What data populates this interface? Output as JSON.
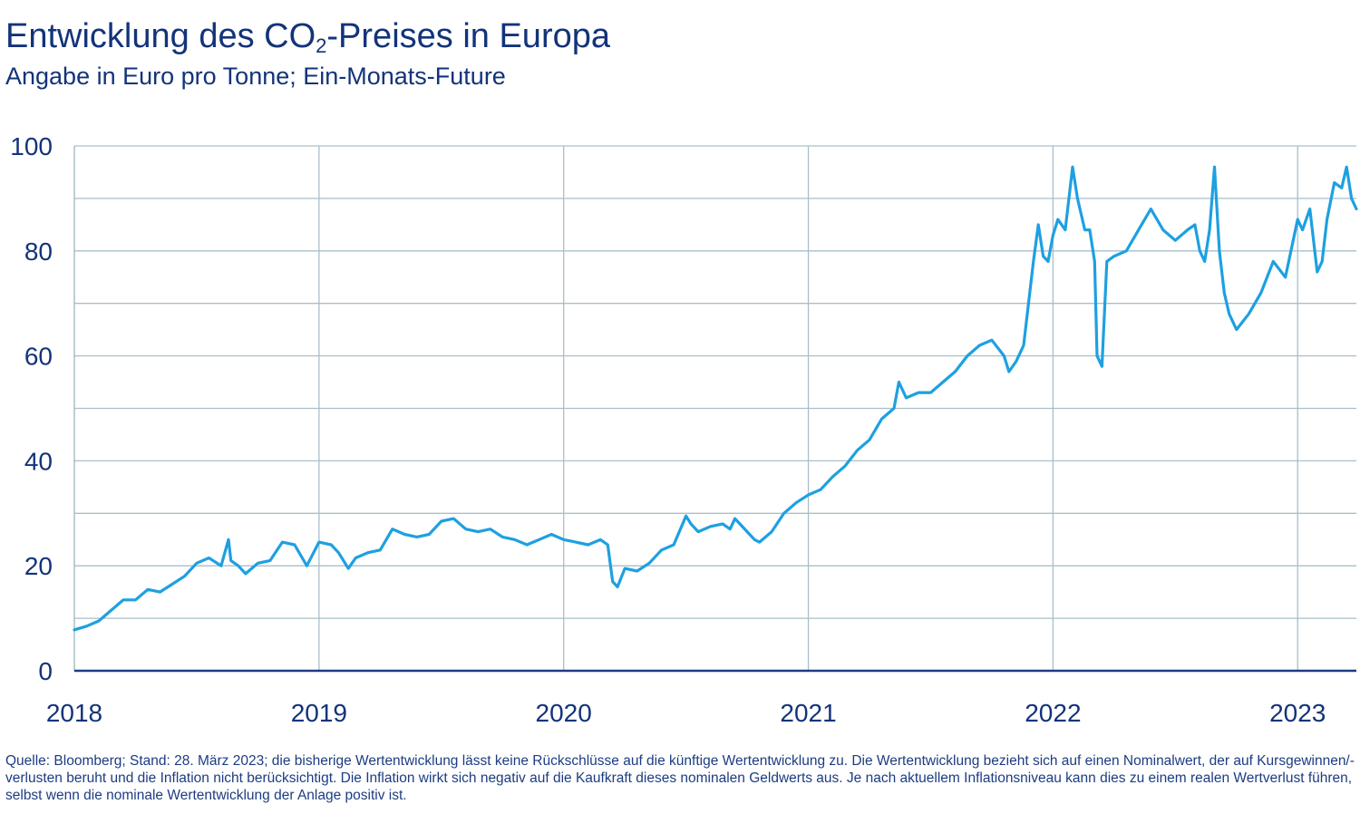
{
  "title": {
    "prefix": "Entwicklung des CO",
    "subscript": "2",
    "suffix": "-Preises in Europa"
  },
  "subtitle": "Angabe in Euro pro Tonne; Ein-Monats-Future",
  "footnote": "Quelle: Bloomberg; Stand: 28. März 2023; die bisherige Wertentwicklung lässt keine Rückschlüsse auf die künftige Wertentwicklung zu. Die Wertentwicklung bezieht sich auf einen Nominalwert, der auf Kursgewinnen/-verlusten beruht und die Inflation nicht berücksichtigt. Die Inflation wirkt sich negativ auf die Kaufkraft dieses nominalen Geldwerts aus. Je nach aktuellem Inflationsniveau kann dies zu einem realen Wertverlust führen, selbst wenn die nominale Wertentwicklung der Anlage positiv ist.",
  "colors": {
    "line": "#1ea0e0",
    "grid": "#a9bfc9",
    "axis": "#1c3c82",
    "text": "#13337a"
  },
  "chart_data": {
    "type": "line",
    "xlim": [
      2018.0,
      2023.24
    ],
    "ylim": [
      0,
      100
    ],
    "x_ticks": [
      2018,
      2019,
      2020,
      2021,
      2022,
      2023
    ],
    "x_tick_labels": [
      "2018",
      "2019",
      "2020",
      "2021",
      "2022",
      "2023"
    ],
    "y_ticks": [
      0,
      20,
      40,
      60,
      80,
      100
    ],
    "y_tick_labels": [
      "0",
      "20",
      "40",
      "60",
      "80",
      "100"
    ],
    "grid": true,
    "series": [
      {
        "x": [
          2018.0,
          2018.05,
          2018.1,
          2018.15,
          2018.2,
          2018.25,
          2018.3,
          2018.35,
          2018.4,
          2018.45,
          2018.5,
          2018.55,
          2018.6,
          2018.63,
          2018.64,
          2018.67,
          2018.7,
          2018.75,
          2018.8,
          2018.85,
          2018.9,
          2018.95,
          2019.0,
          2019.05,
          2019.08,
          2019.12,
          2019.15,
          2019.2,
          2019.25,
          2019.3,
          2019.35,
          2019.4,
          2019.45,
          2019.5,
          2019.55,
          2019.6,
          2019.65,
          2019.7,
          2019.75,
          2019.8,
          2019.85,
          2019.9,
          2019.95,
          2020.0,
          2020.05,
          2020.1,
          2020.15,
          2020.18,
          2020.2,
          2020.22,
          2020.25,
          2020.3,
          2020.35,
          2020.4,
          2020.45,
          2020.5,
          2020.52,
          2020.55,
          2020.6,
          2020.65,
          2020.68,
          2020.7,
          2020.75,
          2020.78,
          2020.8,
          2020.85,
          2020.9,
          2020.95,
          2021.0,
          2021.05,
          2021.1,
          2021.15,
          2021.2,
          2021.25,
          2021.3,
          2021.35,
          2021.37,
          2021.4,
          2021.45,
          2021.5,
          2021.55,
          2021.6,
          2021.65,
          2021.7,
          2021.75,
          2021.8,
          2021.82,
          2021.85,
          2021.88,
          2021.9,
          2021.92,
          2021.94,
          2021.96,
          2021.98,
          2022.0,
          2022.02,
          2022.05,
          2022.08,
          2022.1,
          2022.13,
          2022.15,
          2022.17,
          2022.18,
          2022.2,
          2022.22,
          2022.25,
          2022.3,
          2022.35,
          2022.4,
          2022.45,
          2022.5,
          2022.55,
          2022.58,
          2022.6,
          2022.62,
          2022.64,
          2022.66,
          2022.68,
          2022.7,
          2022.72,
          2022.75,
          2022.8,
          2022.85,
          2022.9,
          2022.95,
          2023.0,
          2023.02,
          2023.05,
          2023.08,
          2023.1,
          2023.12,
          2023.15,
          2023.18,
          2023.2,
          2023.22,
          2023.24
        ],
        "values": [
          7.8,
          8.5,
          9.5,
          11.5,
          13.5,
          13.5,
          15.5,
          15.0,
          16.5,
          18.0,
          20.5,
          21.5,
          20.0,
          25.0,
          21.0,
          20.0,
          18.5,
          20.5,
          21.0,
          24.5,
          24.0,
          20.0,
          24.5,
          24.0,
          22.5,
          19.5,
          21.5,
          22.5,
          23.0,
          27.0,
          26.0,
          25.5,
          26.0,
          28.5,
          29.0,
          27.0,
          26.5,
          27.0,
          25.5,
          25.0,
          24.0,
          25.0,
          26.0,
          25.0,
          24.5,
          24.0,
          25.0,
          24.0,
          17.0,
          16.0,
          19.5,
          19.0,
          20.5,
          23.0,
          24.0,
          29.5,
          28.0,
          26.5,
          27.5,
          28.0,
          27.0,
          29.0,
          26.5,
          25.0,
          24.5,
          26.5,
          30.0,
          32.0,
          33.5,
          34.5,
          37.0,
          39.0,
          42.0,
          44.0,
          48.0,
          50.0,
          55.0,
          52.0,
          53.0,
          53.0,
          55.0,
          57.0,
          60.0,
          62.0,
          63.0,
          60.0,
          57.0,
          59.0,
          62.0,
          70.0,
          78.0,
          85.0,
          79.0,
          78.0,
          83.0,
          86.0,
          84.0,
          96.0,
          90.0,
          84.0,
          84.0,
          78.0,
          60.0,
          58.0,
          78.0,
          79.0,
          80.0,
          84.0,
          88.0,
          84.0,
          82.0,
          84.0,
          85.0,
          80.0,
          78.0,
          84.0,
          96.0,
          80.0,
          72.0,
          68.0,
          65.0,
          68.0,
          72.0,
          78.0,
          75.0,
          86.0,
          84.0,
          88.0,
          76.0,
          78.0,
          86.0,
          93.0,
          92.0,
          96.0,
          90.0,
          88.0
        ]
      }
    ]
  }
}
